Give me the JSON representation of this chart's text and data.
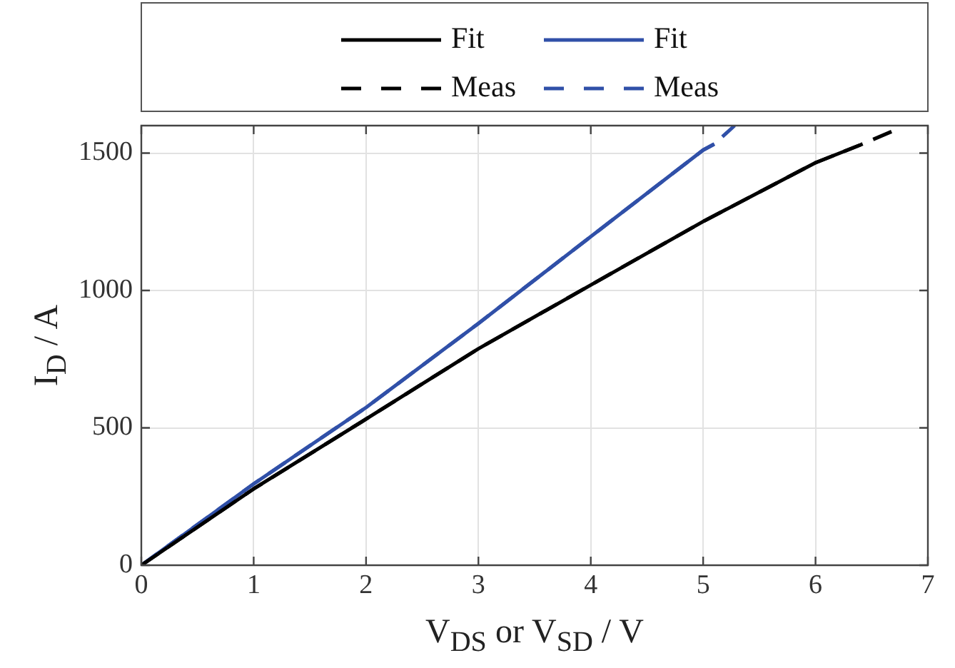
{
  "chart_data": {
    "type": "line",
    "xlabel": "V$_{DS}$ or V$_{SD}$ / V",
    "ylabel": "I$_{D}$ / A",
    "series": [
      {
        "name": "Meas",
        "color": "#000000",
        "line_style": "dashed",
        "x": [
          0,
          1,
          2,
          3,
          4,
          5,
          6,
          6.4,
          6.75
        ],
        "values": [
          0,
          278,
          532,
          788,
          1020,
          1251,
          1465,
          1530,
          1591
        ]
      },
      {
        "name": "Meas",
        "color": "#3050a8",
        "line_style": "dashed",
        "x": [
          0,
          1,
          2,
          3,
          4,
          5,
          5.1,
          5.28
        ],
        "values": [
          0,
          296,
          574,
          880,
          1196,
          1511,
          1533,
          1600
        ]
      },
      {
        "name": "Fit",
        "color": "#000000",
        "line_style": "solid",
        "x": [
          0,
          1,
          2,
          3,
          4,
          5,
          6,
          6.4
        ],
        "values": [
          0,
          278,
          532,
          788,
          1020,
          1251,
          1465,
          1530
        ]
      },
      {
        "name": "Fit",
        "color": "#3050a8",
        "line_style": "solid",
        "x": [
          0,
          1,
          2,
          3,
          4,
          5,
          5.1
        ],
        "values": [
          0,
          296,
          574,
          880,
          1196,
          1511,
          1533
        ]
      }
    ],
    "xlim": [
      0,
      7
    ],
    "xticks": [
      0,
      1,
      2,
      3,
      4,
      5,
      6,
      7
    ],
    "ylim": [
      0,
      1600
    ],
    "yticks": [
      0,
      500,
      1000,
      1500
    ],
    "grid": true,
    "legend": "top",
    "marker": "none"
  }
}
